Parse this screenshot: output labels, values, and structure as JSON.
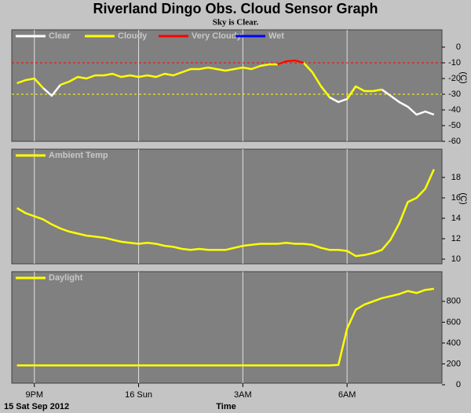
{
  "chart_data": [
    {
      "type": "line",
      "title": "Riverland Dingo Obs. Cloud Sensor Graph",
      "subtitle": "Sky is Clear.",
      "ylabel": "(C)",
      "x": [
        20.5,
        20.75,
        21,
        21.25,
        21.5,
        21.75,
        22,
        22.25,
        22.5,
        22.75,
        23,
        23.25,
        23.5,
        23.75,
        24,
        24.25,
        24.5,
        24.75,
        25,
        25.25,
        25.5,
        25.75,
        26,
        26.25,
        26.5,
        26.75,
        27,
        27.25,
        27.5,
        27.75,
        28,
        28.25,
        28.5,
        28.75,
        29,
        29.25,
        29.5,
        29.75,
        30,
        30.25,
        30.5,
        30.75,
        31,
        31.25,
        31.5,
        31.75,
        32,
        32.25,
        32.5
      ],
      "xlim": [
        20.35,
        32.73
      ],
      "xticks": [
        21,
        24,
        27,
        30
      ],
      "ylim": [
        -60,
        11
      ],
      "yticks": [
        0,
        -10,
        -20,
        -30,
        -40,
        -50,
        -60
      ],
      "reference_lines": [
        {
          "value": -10,
          "color": "#ff0000"
        },
        {
          "value": -30,
          "color": "#ffff00"
        }
      ],
      "series": [
        {
          "name": "Clear",
          "color": "#ffffff",
          "values": [
            null,
            null,
            null,
            -26,
            -31,
            -24,
            null,
            null,
            null,
            null,
            null,
            null,
            null,
            null,
            null,
            null,
            null,
            null,
            null,
            null,
            null,
            null,
            null,
            null,
            null,
            null,
            null,
            null,
            null,
            null,
            null,
            null,
            null,
            null,
            null,
            -25,
            -32,
            -35,
            -33,
            -25,
            null,
            null,
            -27,
            -31,
            -35,
            -38,
            -43,
            -41,
            -43
          ]
        },
        {
          "name": "Cloudy",
          "color": "#ffff00",
          "values": [
            -23,
            -21,
            -20,
            -26,
            null,
            -24,
            -22,
            -19,
            -20,
            -18,
            -18,
            -17,
            -19,
            -18,
            -19,
            -18,
            -19,
            -17,
            -18,
            -16,
            -14,
            -14,
            -13,
            -14,
            -15,
            -14,
            -13,
            -14,
            -12,
            -11,
            -11,
            -9,
            -8.5,
            -10,
            -16,
            -25,
            -32,
            null,
            -33,
            -25,
            -28,
            -28,
            -27,
            null,
            null,
            null,
            null,
            null,
            null
          ]
        },
        {
          "name": "Very Cloudy",
          "color": "#ff0000",
          "values": [
            null,
            null,
            null,
            null,
            null,
            null,
            null,
            null,
            null,
            null,
            null,
            null,
            null,
            null,
            null,
            null,
            null,
            null,
            null,
            null,
            null,
            null,
            null,
            null,
            null,
            null,
            null,
            null,
            null,
            null,
            -11,
            -9,
            -8.5,
            -10,
            null,
            null,
            null,
            null,
            null,
            null,
            null,
            null,
            null,
            null,
            null,
            null,
            null,
            null,
            null
          ]
        },
        {
          "name": "Wet",
          "color": "#0000ff",
          "values": [
            null,
            null,
            null,
            null,
            null,
            null,
            null,
            null,
            null,
            null,
            null,
            null,
            null,
            null,
            null,
            null,
            null,
            null,
            null,
            null,
            null,
            null,
            null,
            null,
            null,
            null,
            null,
            null,
            null,
            null,
            null,
            null,
            null,
            null,
            null,
            null,
            null,
            null,
            null,
            null,
            null,
            null,
            null,
            null,
            null,
            null,
            null,
            null,
            null
          ]
        }
      ]
    },
    {
      "type": "line",
      "ylabel": "(C)",
      "x": [
        20.5,
        20.75,
        21,
        21.25,
        21.5,
        21.75,
        22,
        22.25,
        22.5,
        22.75,
        23,
        23.25,
        23.5,
        23.75,
        24,
        24.25,
        24.5,
        24.75,
        25,
        25.25,
        25.5,
        25.75,
        26,
        26.25,
        26.5,
        26.75,
        27,
        27.25,
        27.5,
        27.75,
        28,
        28.25,
        28.5,
        28.75,
        29,
        29.25,
        29.5,
        29.75,
        30,
        30.25,
        30.5,
        30.75,
        31,
        31.25,
        31.5,
        31.75,
        32,
        32.25,
        32.5
      ],
      "xlim": [
        20.35,
        32.73
      ],
      "xticks": [
        21,
        24,
        27,
        30
      ],
      "ylim": [
        9.54,
        20.77
      ],
      "yticks": [
        10,
        12,
        14,
        16,
        18
      ],
      "series": [
        {
          "name": "Ambient Temp",
          "color": "#ffff00",
          "values": [
            15.0,
            14.5,
            14.2,
            13.9,
            13.4,
            13.0,
            12.7,
            12.5,
            12.3,
            12.2,
            12.1,
            11.9,
            11.7,
            11.6,
            11.5,
            11.6,
            11.5,
            11.3,
            11.2,
            11.0,
            10.9,
            11.0,
            10.9,
            10.9,
            10.9,
            11.1,
            11.3,
            11.4,
            11.5,
            11.5,
            11.5,
            11.6,
            11.5,
            11.5,
            11.4,
            11.1,
            10.9,
            10.9,
            10.8,
            10.3,
            10.4,
            10.6,
            10.9,
            11.9,
            13.5,
            15.6,
            16.0,
            16.9,
            18.8
          ]
        }
      ]
    },
    {
      "type": "line",
      "xlabel": "Time",
      "date": "15 Sat Sep 2012",
      "x": [
        20.5,
        20.75,
        21,
        21.25,
        21.5,
        21.75,
        22,
        22.25,
        22.5,
        22.75,
        23,
        23.25,
        23.5,
        23.75,
        24,
        24.25,
        24.5,
        24.75,
        25,
        25.25,
        25.5,
        25.75,
        26,
        26.25,
        26.5,
        26.75,
        27,
        27.25,
        27.5,
        27.75,
        28,
        28.25,
        28.5,
        28.75,
        29,
        29.25,
        29.5,
        29.75,
        30,
        30.25,
        30.5,
        30.75,
        31,
        31.25,
        31.5,
        31.75,
        32,
        32.25,
        32.5
      ],
      "xlim": [
        20.35,
        32.73
      ],
      "xticks": [
        {
          "value": 21,
          "label": "9PM"
        },
        {
          "value": 24,
          "label": "16 Sun"
        },
        {
          "value": 27,
          "label": "3AM"
        },
        {
          "value": 30,
          "label": "6AM"
        }
      ],
      "ylim": [
        15,
        1085
      ],
      "yticks": [
        0,
        200,
        400,
        600,
        800
      ],
      "series": [
        {
          "name": "Daylight",
          "color": "#ffff00",
          "values": [
            185,
            185,
            185,
            185,
            185,
            185,
            185,
            185,
            185,
            185,
            185,
            185,
            185,
            185,
            185,
            185,
            185,
            185,
            185,
            185,
            185,
            185,
            185,
            185,
            185,
            185,
            185,
            185,
            185,
            185,
            185,
            185,
            185,
            185,
            185,
            185,
            185,
            190,
            540,
            720,
            770,
            800,
            830,
            850,
            870,
            900,
            880,
            910,
            920
          ]
        }
      ]
    }
  ]
}
